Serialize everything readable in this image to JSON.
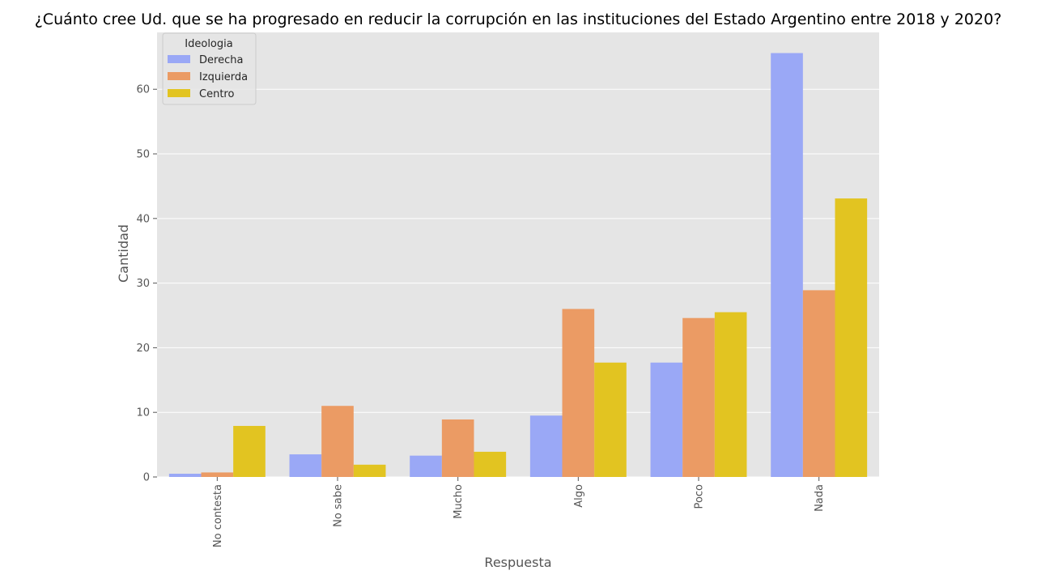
{
  "chart_data": {
    "type": "bar",
    "title": "¿Cuánto cree Ud. que se ha progresado en reducir la corrupción en las instituciones del Estado Argentino entre 2018 y 2020?",
    "xlabel": "Respuesta",
    "ylabel": "Cantidad",
    "categories": [
      "No contesta",
      "No sabe",
      "Mucho",
      "Algo",
      "Poco",
      "Nada"
    ],
    "ylim": [
      0,
      68.8
    ],
    "yticks": [
      0,
      10,
      20,
      30,
      40,
      50,
      60
    ],
    "grid": true,
    "background_color": "#E5E5E5",
    "grid_color": "#FFFFFF",
    "legend": {
      "title": "Ideologia",
      "placement": "top-left"
    },
    "series": [
      {
        "name": "Derecha",
        "color": "#9AA8F6",
        "values": [
          0.5,
          3.5,
          3.3,
          9.5,
          17.7,
          65.6
        ]
      },
      {
        "name": "Izquierda",
        "color": "#EB9B64",
        "values": [
          0.7,
          11.0,
          8.9,
          26.0,
          24.6,
          28.9
        ]
      },
      {
        "name": "Centro",
        "color": "#E2C421",
        "values": [
          7.9,
          1.9,
          3.9,
          17.7,
          25.5,
          43.1
        ]
      }
    ]
  }
}
